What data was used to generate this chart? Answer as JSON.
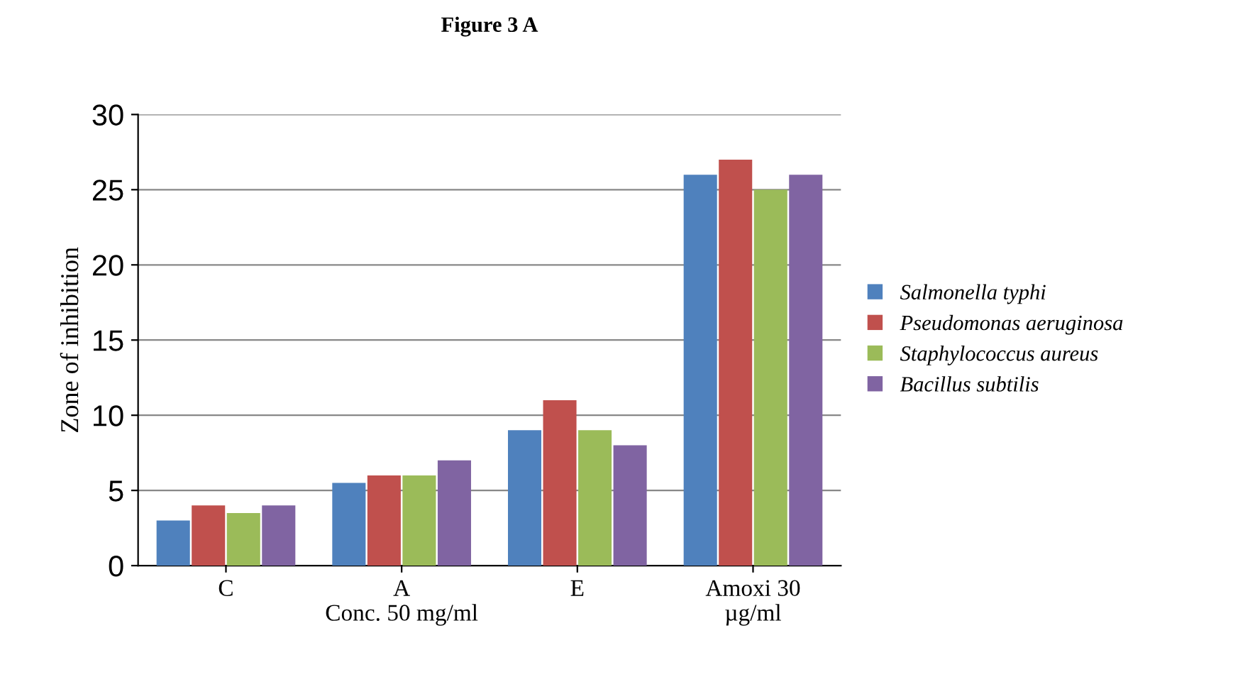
{
  "chart_data": {
    "type": "bar",
    "title": "Figure 3 A",
    "ylabel": "Zone of inhibition",
    "categories": [
      "C",
      "A\nConc. 50 mg/ml",
      "E",
      "Amoxi 30\nµg/ml"
    ],
    "series": [
      {
        "name": "Salmonella typhi",
        "color": "#4f81bd",
        "values": [
          3,
          5.5,
          9,
          26
        ]
      },
      {
        "name": "Pseudomonas aeruginosa",
        "color": "#c0504d",
        "values": [
          4,
          6,
          11,
          27
        ]
      },
      {
        "name": "Staphylococcus aureus",
        "color": "#9bbb59",
        "values": [
          3.5,
          6,
          9,
          25
        ]
      },
      {
        "name": "Bacillus subtilis",
        "color": "#8064a2",
        "values": [
          4,
          7,
          8,
          26
        ]
      }
    ],
    "ylim": [
      0,
      30
    ],
    "yticks": [
      0,
      5,
      10,
      15,
      20,
      25,
      30
    ],
    "grid": "y",
    "legend": "right"
  }
}
